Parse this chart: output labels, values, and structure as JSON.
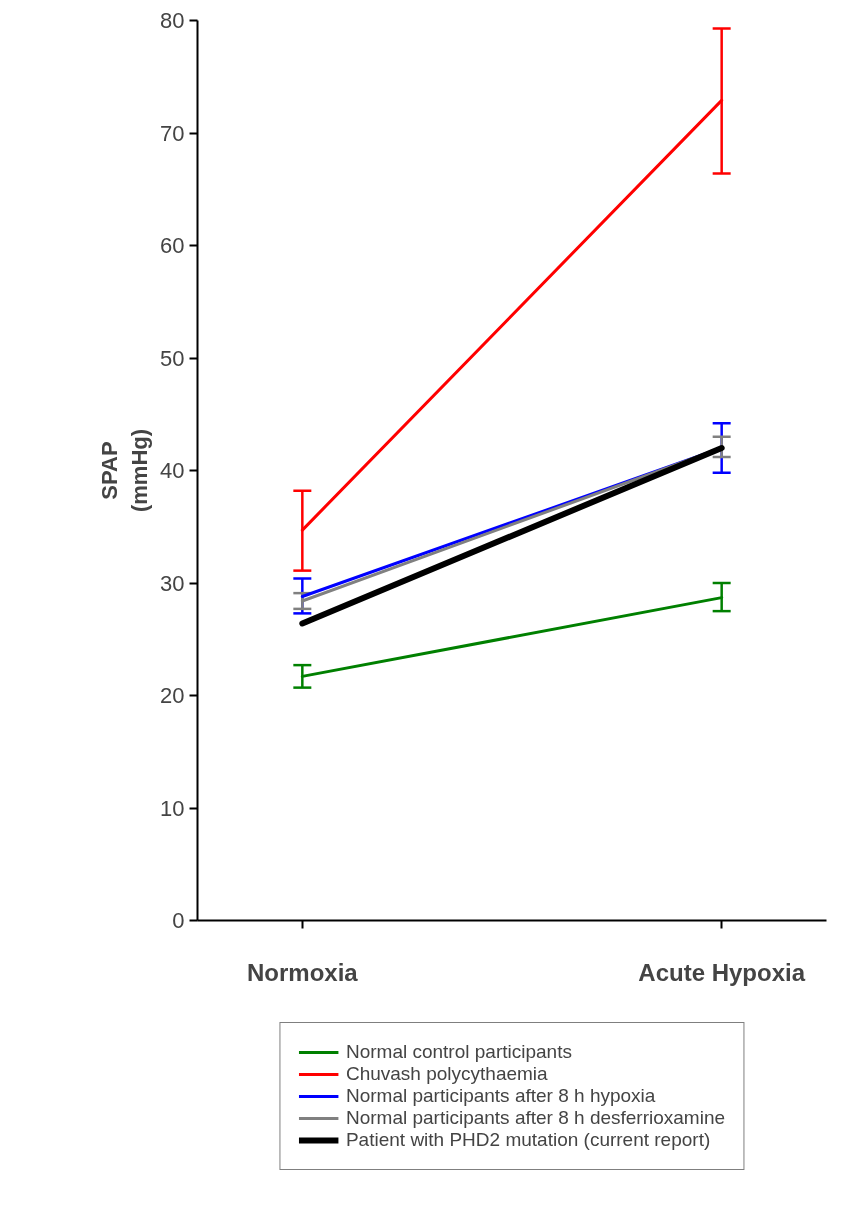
{
  "chart_data": {
    "type": "line",
    "ylabel": "SPAP\n(mmHg)",
    "categories": [
      "Normoxia",
      "Acute Hypoxia"
    ],
    "ylim": [
      0,
      80
    ],
    "yticks": [
      0,
      10,
      20,
      30,
      40,
      50,
      60,
      70,
      80
    ],
    "grid": false,
    "legend": "bottom",
    "marker": "none",
    "line_style": "solid",
    "series": [
      {
        "name": "Normal control participants",
        "color": "#008000",
        "values": [
          21.7,
          28.7
        ],
        "errors": [
          [
            20.7,
            22.7
          ],
          [
            27.5,
            30.0
          ]
        ]
      },
      {
        "name": "Chuvash polycythaemia",
        "color": "#ff0000",
        "values": [
          34.7,
          72.9
        ],
        "errors": [
          [
            31.1,
            38.2
          ],
          [
            66.4,
            79.3
          ]
        ]
      },
      {
        "name": "Normal participants after 8 h hypoxia",
        "color": "#0000ff",
        "values": [
          28.8,
          42.0
        ],
        "errors": [
          [
            27.3,
            30.4
          ],
          [
            39.8,
            44.2
          ]
        ]
      },
      {
        "name": "Normal participants after 8 h desferrioxamine",
        "color": "#808080",
        "values": [
          28.4,
          42.0
        ],
        "errors": [
          [
            27.7,
            29.1
          ],
          [
            41.2,
            43.0
          ]
        ]
      },
      {
        "name": "Patient with PHD2 mutation (current report)",
        "color": "#000000",
        "values": [
          26.4,
          42.0
        ]
      }
    ]
  }
}
